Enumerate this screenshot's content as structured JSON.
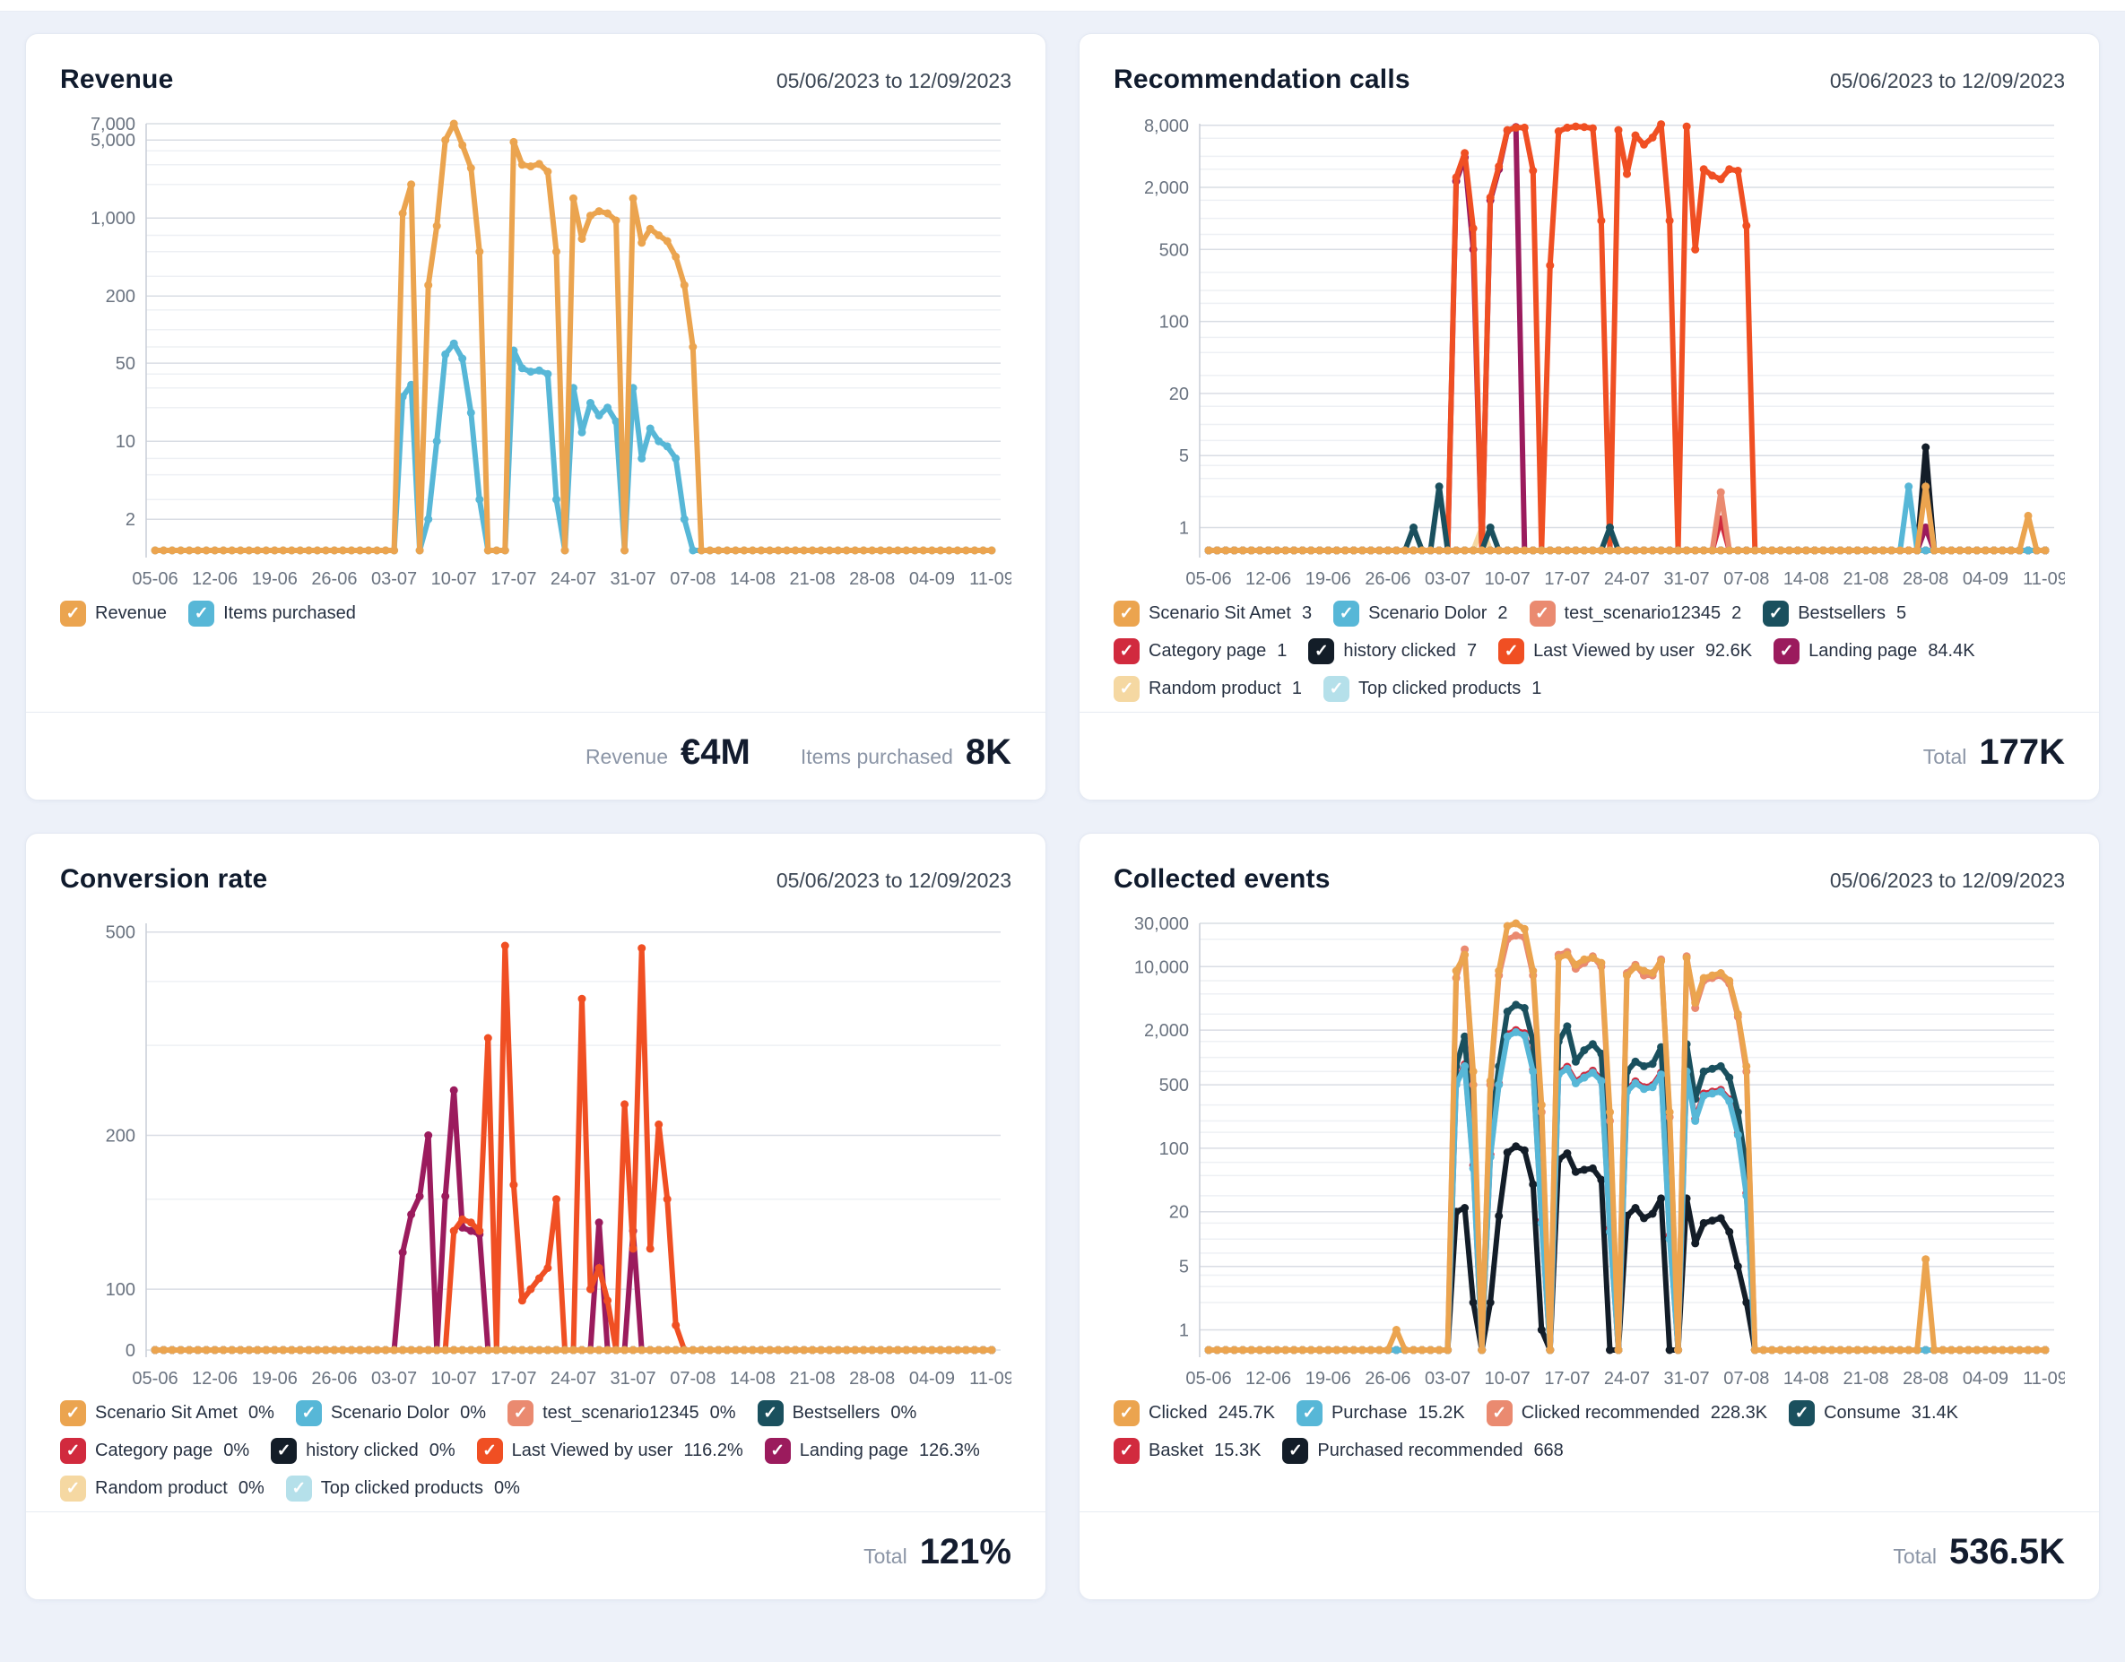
{
  "page": {
    "background": "#edf1f9"
  },
  "cards": [
    {
      "title": "Revenue",
      "date_range": "05/06/2023 to 12/09/2023",
      "footer": {
        "stats": [
          {
            "label": "Revenue",
            "value": "€4M"
          },
          {
            "label": "Items purchased",
            "value": "8K"
          }
        ]
      },
      "chart_data": {
        "type": "line",
        "scale": "log",
        "num_points": 99,
        "x_label_every": 7,
        "x_tick_labels": [
          "05-06",
          "12-06",
          "19-06",
          "26-06",
          "03-07",
          "10-07",
          "17-07",
          "24-07",
          "31-07",
          "07-08",
          "14-08",
          "21-08",
          "28-08",
          "04-09",
          "11-09"
        ],
        "y_ticks": [
          {
            "label": "7,000",
            "value": 7000
          },
          {
            "label": "5,000",
            "value": 5000
          },
          {
            "label": "1,000",
            "value": 1000
          },
          {
            "label": "200",
            "value": 200
          },
          {
            "label": "50",
            "value": 50
          },
          {
            "label": "10",
            "value": 10
          },
          {
            "label": "2",
            "value": 2
          }
        ],
        "minor_gridlines": [
          4000,
          3000,
          2000,
          700,
          500,
          300,
          150,
          100,
          70,
          40,
          30,
          20,
          7,
          5,
          3
        ],
        "y_top": 7000,
        "y_base": 1.05,
        "series": [
          {
            "name": "Revenue",
            "color": "#EBA44F",
            "legend_value": "",
            "sparse": {
              "29": 1100,
              "30": 2000,
              "32": 250,
              "33": 850,
              "34": 5000,
              "35": 7000,
              "36": 4500,
              "37": 2800,
              "38": 500,
              "42": 4800,
              "43": 3000,
              "44": 2900,
              "45": 3050,
              "46": 2600,
              "47": 500,
              "49": 1500,
              "50": 650,
              "51": 1050,
              "52": 1150,
              "53": 1100,
              "54": 950,
              "56": 1500,
              "57": 600,
              "58": 800,
              "59": 700,
              "60": 620,
              "61": 450,
              "62": 250,
              "63": 70
            }
          },
          {
            "name": "Items purchased",
            "color": "#57B7D7",
            "legend_value": "",
            "sparse": {
              "29": 25,
              "30": 32,
              "32": 2,
              "33": 10,
              "34": 60,
              "35": 75,
              "36": 55,
              "37": 18,
              "38": 3,
              "42": 65,
              "43": 45,
              "44": 42,
              "45": 43,
              "46": 40,
              "47": 3,
              "49": 30,
              "50": 12,
              "51": 22,
              "52": 17,
              "53": 20,
              "54": 15,
              "56": 30,
              "57": 7,
              "58": 13,
              "59": 10,
              "60": 9,
              "61": 7,
              "62": 2
            }
          }
        ]
      }
    },
    {
      "title": "Recommendation calls",
      "date_range": "05/06/2023 to 12/09/2023",
      "footer": {
        "stats": [
          {
            "label": "Total",
            "value": "177K"
          }
        ]
      },
      "chart_data": {
        "type": "line",
        "scale": "log",
        "num_points": 99,
        "x_label_every": 7,
        "x_tick_labels": [
          "05-06",
          "12-06",
          "19-06",
          "26-06",
          "03-07",
          "10-07",
          "17-07",
          "24-07",
          "31-07",
          "07-08",
          "14-08",
          "21-08",
          "28-08",
          "04-09",
          "11-09"
        ],
        "y_ticks": [
          {
            "label": "8,000",
            "value": 8000
          },
          {
            "label": "2,000",
            "value": 2000
          },
          {
            "label": "500",
            "value": 500
          },
          {
            "label": "100",
            "value": 100
          },
          {
            "label": "20",
            "value": 20
          },
          {
            "label": "5",
            "value": 5
          },
          {
            "label": "1",
            "value": 1
          }
        ],
        "minor_gridlines": [
          6000,
          4000,
          3000,
          1500,
          1000,
          700,
          300,
          200,
          150,
          70,
          50,
          30,
          15,
          10,
          7,
          4,
          3,
          2
        ],
        "y_top": 8300,
        "y_base": 0.6,
        "series": [
          {
            "name": "Scenario Sit Amet",
            "color": "#EBA44F",
            "legend_value": "3",
            "sparse": {
              "84": 2.5,
              "96": 1.3
            }
          },
          {
            "name": "Scenario Dolor",
            "color": "#57B7D7",
            "legend_value": "2",
            "sparse": {
              "82": 2.5
            }
          },
          {
            "name": "test_scenario12345",
            "color": "#EA8A70",
            "legend_value": "2",
            "sparse": {
              "60": 2.2
            }
          },
          {
            "name": "Bestsellers",
            "color": "#1A505E",
            "legend_value": "5",
            "sparse": {
              "24": 1,
              "27": 2.5,
              "33": 1,
              "47": 1
            }
          },
          {
            "name": "Category page",
            "color": "#D12A3E",
            "legend_value": "1",
            "sparse": {
              "60": 1.2
            }
          },
          {
            "name": "history clicked",
            "color": "#131D28",
            "legend_value": "7",
            "sparse": {
              "84": 6
            }
          },
          {
            "name": "Last Viewed by user",
            "color": "#F04F23",
            "legend_value": "92.6K",
            "sparse": {
              "29": 2500,
              "30": 4300,
              "31": 800,
              "33": 1600,
              "34": 3200,
              "35": 7200,
              "36": 7600,
              "37": 7600,
              "38": 2900,
              "40": 350,
              "41": 7000,
              "42": 7600,
              "43": 7800,
              "44": 7700,
              "45": 7500,
              "46": 950,
              "48": 7200,
              "49": 2700,
              "50": 6400,
              "51": 5200,
              "52": 6100,
              "53": 8200,
              "54": 950,
              "56": 7800,
              "57": 500,
              "58": 3000,
              "59": 2600,
              "60": 2400,
              "61": 3000,
              "62": 2900,
              "63": 850
            }
          },
          {
            "name": "Landing page",
            "color": "#9B1B5D",
            "legend_value": "84.4K",
            "sparse": {
              "29": 2300,
              "30": 3900,
              "31": 500,
              "33": 1500,
              "34": 3000,
              "35": 7100,
              "36": 7700,
              "84": 1
            }
          },
          {
            "name": "Random product",
            "color": "#F5D8A2",
            "legend_value": "1",
            "sparse": {
              "32": 1
            }
          },
          {
            "name": "Top clicked products",
            "color": "#B5E0EA",
            "legend_value": "1",
            "sparse": {
              "84": 1
            }
          }
        ]
      }
    },
    {
      "title": "Conversion rate",
      "date_range": "05/06/2023 to 12/09/2023",
      "footer": {
        "stats": [
          {
            "label": "Total",
            "value": "121%"
          }
        ]
      },
      "chart_data": {
        "type": "line",
        "scale": "log",
        "num_points": 99,
        "x_label_every": 7,
        "x_tick_labels": [
          "05-06",
          "12-06",
          "19-06",
          "26-06",
          "03-07",
          "10-07",
          "17-07",
          "24-07",
          "31-07",
          "07-08",
          "14-08",
          "21-08",
          "28-08",
          "04-09",
          "11-09"
        ],
        "y_ticks": [
          {
            "label": "500",
            "value": 500
          },
          {
            "label": "200",
            "value": 200
          },
          {
            "label": "100",
            "value": 100
          },
          {
            "label": "0",
            "value": 0
          }
        ],
        "minor_gridlines": [
          400,
          300,
          150
        ],
        "y_top": 520,
        "y_base": 76,
        "series": [
          {
            "name": "Scenario Sit Amet",
            "color": "#EBA44F",
            "legend_value": "0%",
            "sparse": {}
          },
          {
            "name": "Scenario Dolor",
            "color": "#57B7D7",
            "legend_value": "0%",
            "sparse": {}
          },
          {
            "name": "test_scenario12345",
            "color": "#EA8A70",
            "legend_value": "0%",
            "sparse": {}
          },
          {
            "name": "Bestsellers",
            "color": "#1A505E",
            "legend_value": "0%",
            "sparse": {}
          },
          {
            "name": "Category page",
            "color": "#D12A3E",
            "legend_value": "0%",
            "sparse": {}
          },
          {
            "name": "history clicked",
            "color": "#131D28",
            "legend_value": "0%",
            "sparse": {}
          },
          {
            "name": "Last Viewed by user",
            "color": "#F04F23",
            "legend_value": "116.2%",
            "sparse": {
              "30": 25,
              "31": 40,
              "32": 30,
              "33": 55,
              "34": 8,
              "35": 130,
              "36": 137,
              "37": 135,
              "38": 130,
              "39": 310,
              "40": 2,
              "41": 470,
              "42": 160,
              "43": 95,
              "44": 100,
              "45": 105,
              "46": 110,
              "47": 150,
              "48": 60,
              "49": 5,
              "50": 370,
              "51": 100,
              "52": 110,
              "53": 95,
              "54": 45,
              "55": 230,
              "56": 120,
              "57": 465,
              "58": 120,
              "59": 210,
              "60": 150,
              "61": 85,
              "62": 20
            }
          },
          {
            "name": "Landing page",
            "color": "#9B1B5D",
            "legend_value": "126.3%",
            "sparse": {
              "29": 118,
              "30": 140,
              "31": 152,
              "32": 200,
              "33": 20,
              "34": 152,
              "35": 245,
              "36": 132,
              "37": 130,
              "38": 128,
              "52": 135,
              "56": 130,
              "62": 40
            }
          },
          {
            "name": "Random product",
            "color": "#F5D8A2",
            "legend_value": "0%",
            "sparse": {}
          },
          {
            "name": "Top clicked products",
            "color": "#B5E0EA",
            "legend_value": "0%",
            "sparse": {}
          }
        ]
      }
    },
    {
      "title": "Collected events",
      "date_range": "05/06/2023 to 12/09/2023",
      "footer": {
        "stats": [
          {
            "label": "Total",
            "value": "536.5K"
          }
        ]
      },
      "chart_data": {
        "type": "line",
        "scale": "log",
        "num_points": 99,
        "x_label_every": 7,
        "x_tick_labels": [
          "05-06",
          "12-06",
          "19-06",
          "26-06",
          "03-07",
          "10-07",
          "17-07",
          "24-07",
          "31-07",
          "07-08",
          "14-08",
          "21-08",
          "28-08",
          "04-09",
          "11-09"
        ],
        "y_ticks": [
          {
            "label": "30,000",
            "value": 30000
          },
          {
            "label": "10,000",
            "value": 10000
          },
          {
            "label": "2,000",
            "value": 2000
          },
          {
            "label": "500",
            "value": 500
          },
          {
            "label": "100",
            "value": 100
          },
          {
            "label": "20",
            "value": 20
          },
          {
            "label": "5",
            "value": 5
          },
          {
            "label": "1",
            "value": 1
          }
        ],
        "minor_gridlines": [
          20000,
          7000,
          5000,
          3000,
          1500,
          1000,
          700,
          300,
          200,
          150,
          70,
          50,
          30,
          15,
          10,
          7,
          4,
          3,
          2
        ],
        "y_top": 30000,
        "y_base": 0.6,
        "series": [
          {
            "name": "Clicked",
            "color": "#EBA44F",
            "legend_value": "245.7K",
            "sparse": {
              "22": 1,
              "29": 9000,
              "30": 13500,
              "31": 700,
              "33": 550,
              "34": 9000,
              "35": 28000,
              "36": 30000,
              "37": 26000,
              "38": 9000,
              "39": 300,
              "41": 12500,
              "42": 13500,
              "43": 10500,
              "44": 12000,
              "45": 12500,
              "46": 11000,
              "47": 250,
              "49": 8000,
              "50": 10000,
              "51": 9000,
              "52": 8500,
              "53": 11500,
              "54": 250,
              "56": 12500,
              "57": 4000,
              "58": 7500,
              "59": 8000,
              "60": 8500,
              "61": 7000,
              "62": 3000,
              "63": 800,
              "84": 6
            }
          },
          {
            "name": "Purchase",
            "color": "#57B7D7",
            "legend_value": "15.2K",
            "sparse": {
              "29": 500,
              "30": 800,
              "31": 60,
              "33": 80,
              "34": 500,
              "35": 1700,
              "36": 1900,
              "37": 1750,
              "38": 700,
              "39": 15,
              "41": 650,
              "42": 750,
              "43": 520,
              "44": 600,
              "45": 680,
              "46": 550,
              "47": 12,
              "49": 420,
              "50": 520,
              "51": 450,
              "52": 470,
              "53": 650,
              "54": 10,
              "56": 700,
              "57": 200,
              "58": 380,
              "59": 400,
              "60": 420,
              "61": 330,
              "62": 140,
              "63": 30
            }
          },
          {
            "name": "Clicked recommended",
            "color": "#EA8A70",
            "legend_value": "228.3K",
            "sparse": {
              "29": 7500,
              "30": 15500,
              "31": 500,
              "33": 500,
              "34": 8000,
              "35": 20000,
              "36": 22000,
              "37": 21000,
              "38": 8000,
              "39": 250,
              "41": 13500,
              "42": 14500,
              "43": 9500,
              "44": 11000,
              "45": 13000,
              "46": 10000,
              "47": 200,
              "49": 8500,
              "50": 10500,
              "51": 8000,
              "52": 8000,
              "53": 12000,
              "54": 220,
              "56": 13000,
              "57": 3500,
              "58": 7000,
              "59": 7500,
              "60": 8000,
              "61": 6500,
              "62": 2800,
              "63": 700
            }
          },
          {
            "name": "Consume",
            "color": "#1A505E",
            "legend_value": "31.4K",
            "sparse": {
              "29": 800,
              "30": 1700,
              "31": 100,
              "33": 150,
              "34": 800,
              "35": 3200,
              "36": 3800,
              "37": 3500,
              "38": 1500,
              "39": 30,
              "41": 1500,
              "42": 2200,
              "43": 900,
              "44": 1200,
              "45": 1400,
              "46": 1100,
              "47": 25,
              "49": 700,
              "50": 900,
              "51": 800,
              "52": 850,
              "53": 1300,
              "54": 20,
              "56": 1400,
              "57": 350,
              "58": 700,
              "59": 750,
              "60": 800,
              "61": 600,
              "62": 250,
              "63": 60
            }
          },
          {
            "name": "Basket",
            "color": "#D12A3E",
            "legend_value": "15.3K",
            "sparse": {
              "29": 530,
              "30": 840,
              "31": 65,
              "33": 85,
              "34": 520,
              "35": 1800,
              "36": 2000,
              "37": 1850,
              "38": 730,
              "39": 16,
              "41": 680,
              "42": 790,
              "43": 545,
              "44": 630,
              "45": 715,
              "46": 580,
              "47": 13,
              "49": 440,
              "50": 545,
              "51": 470,
              "52": 495,
              "53": 680,
              "54": 11,
              "56": 735,
              "57": 210,
              "58": 400,
              "59": 420,
              "60": 440,
              "61": 345,
              "62": 147,
              "63": 32
            }
          },
          {
            "name": "Purchased recommended",
            "color": "#131D28",
            "legend_value": "668",
            "sparse": {
              "29": 20,
              "30": 22,
              "31": 2,
              "33": 2,
              "34": 18,
              "35": 90,
              "36": 105,
              "37": 95,
              "38": 40,
              "39": 1,
              "41": 75,
              "42": 88,
              "43": 55,
              "44": 58,
              "45": 60,
              "46": 45,
              "49": 18,
              "50": 22,
              "51": 17,
              "52": 19,
              "53": 28,
              "56": 28,
              "57": 9,
              "58": 15,
              "59": 16,
              "60": 17,
              "61": 12,
              "62": 5,
              "63": 2
            }
          }
        ]
      }
    }
  ]
}
